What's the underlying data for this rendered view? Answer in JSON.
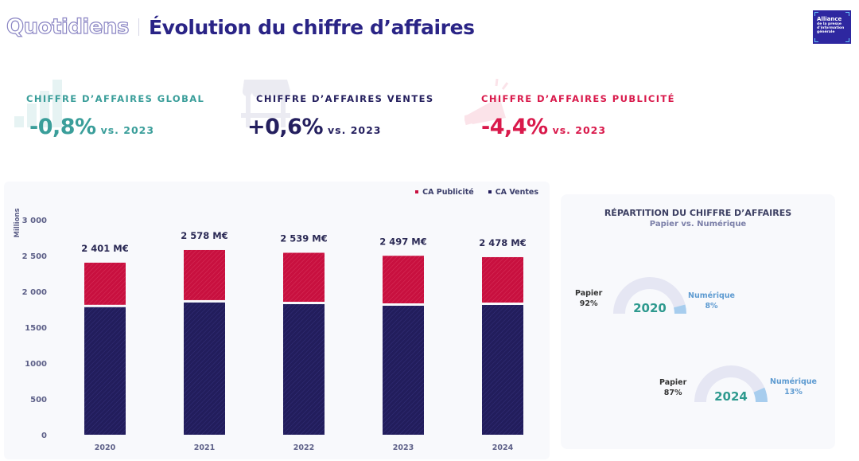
{
  "header": {
    "brand": "Quotidiens",
    "title": "Évolution du chiffre d’affaires"
  },
  "logo": {
    "line1": "Alliance",
    "line2": "de la presse",
    "line3": "d'information",
    "line4": "générale"
  },
  "kpis": [
    {
      "label": "CHIFFRE D’AFFAIRES GLOBAL",
      "value": "-0,8%",
      "vs": "vs. 2023",
      "color": "#3a9e9a",
      "icon": "bar-chart-icon"
    },
    {
      "label": "CHIFFRE D’AFFAIRES VENTES",
      "value": "+0,6%",
      "vs": "vs. 2023",
      "color": "#241f5e",
      "icon": "storefront-icon"
    },
    {
      "label": "CHIFFRE D’AFFAIRES PUBLICITÉ",
      "value": "-4,4%",
      "vs": "vs. 2023",
      "color": "#d9194b",
      "icon": "megaphone-icon"
    }
  ],
  "colors": {
    "ventes": "#221d5c",
    "publicite": "#c8103f",
    "papier": "#e5e6f3",
    "numerique": "#a7cdee",
    "year": "#2f9a8f",
    "axis_text": "#5d6088",
    "numerique_text": "#5e9bd1"
  },
  "chart_data": [
    {
      "type": "bar",
      "stacked": true,
      "title": "",
      "xlabel": "",
      "ylabel": "Millions",
      "ylim": [
        0,
        3000
      ],
      "yticks": [
        0,
        500,
        1000,
        1500,
        2000,
        2500,
        3000
      ],
      "ytick_labels": [
        "0",
        "500",
        "1000",
        "1500",
        "2 000",
        "2 500",
        "3 000"
      ],
      "categories": [
        "2020",
        "2021",
        "2022",
        "2023",
        "2024"
      ],
      "series": [
        {
          "name": "CA Ventes",
          "values": [
            1780,
            1845,
            1822,
            1800,
            1811
          ]
        },
        {
          "name": "CA Publicité",
          "values": [
            621,
            733,
            717,
            697,
            667
          ]
        }
      ],
      "total_labels": [
        "2 401 M€",
        "2 578 M€",
        "2 539 M€",
        "2 497 M€",
        "2 478 M€"
      ],
      "legend": [
        "CA Publicité",
        "CA Ventes"
      ],
      "legend_position": "top-right",
      "grid": false
    },
    {
      "type": "pie",
      "variant": "half-donut",
      "title": "RÉPARTITION DU CHIFFRE D’AFFAIRES",
      "subtitle": "Papier vs. Numérique",
      "charts": [
        {
          "year": "2020",
          "labels": [
            "Papier",
            "Numérique"
          ],
          "values": [
            92,
            8
          ],
          "value_labels": [
            "92%",
            "8%"
          ]
        },
        {
          "year": "2024",
          "labels": [
            "Papier",
            "Numérique"
          ],
          "values": [
            87,
            13
          ],
          "value_labels": [
            "87%",
            "13%"
          ]
        }
      ]
    }
  ]
}
